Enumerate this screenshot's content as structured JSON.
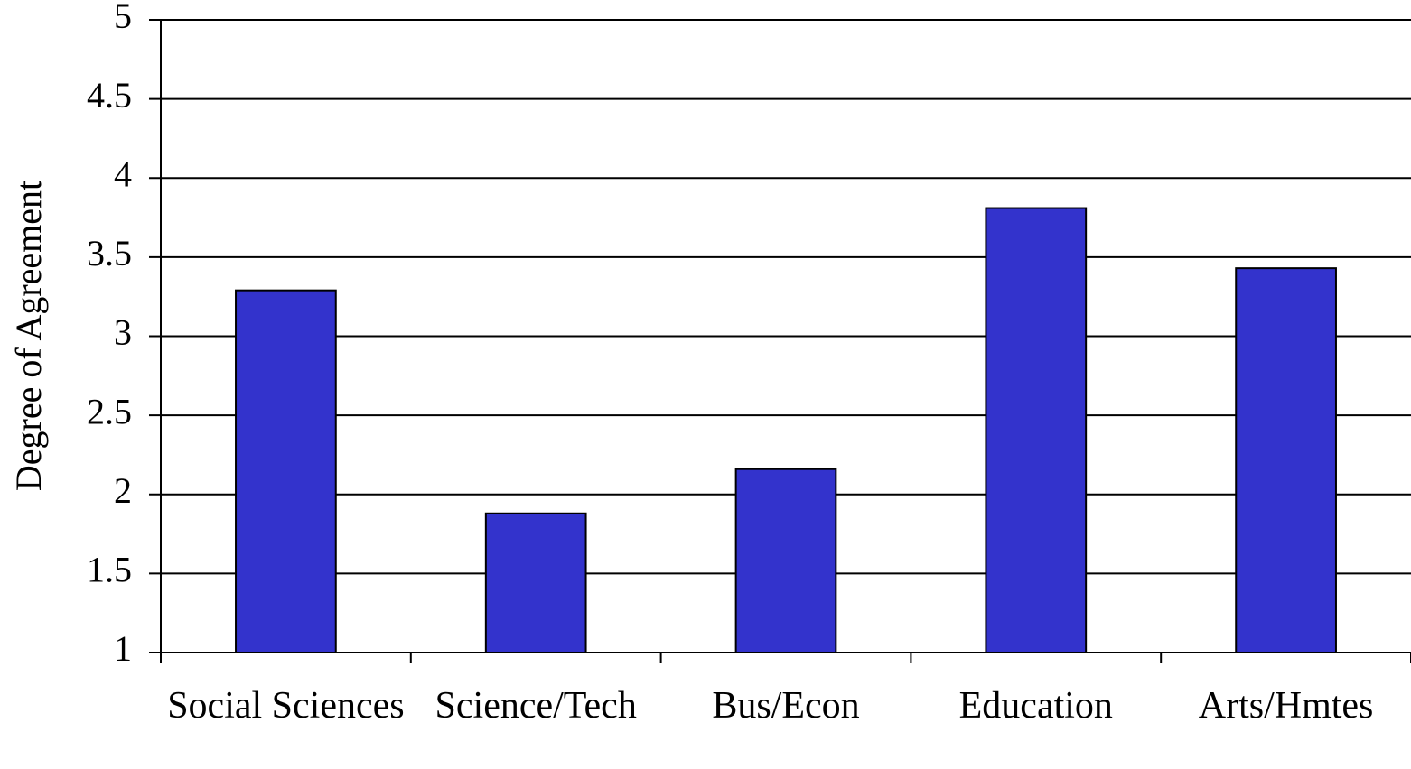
{
  "chart_data": {
    "type": "bar",
    "y_label": "Degree of Agreement",
    "categories": [
      "Social Sciences",
      "Science/Tech",
      "Bus/Econ",
      "Education",
      "Arts/Hmtes"
    ],
    "values": [
      3.29,
      1.88,
      2.16,
      3.81,
      3.43
    ],
    "color": "#3333cc",
    "ylim": [
      1,
      5
    ],
    "yticks": [
      1,
      1.5,
      2,
      2.5,
      3,
      3.5,
      4,
      4.5,
      5
    ],
    "grid": true
  }
}
